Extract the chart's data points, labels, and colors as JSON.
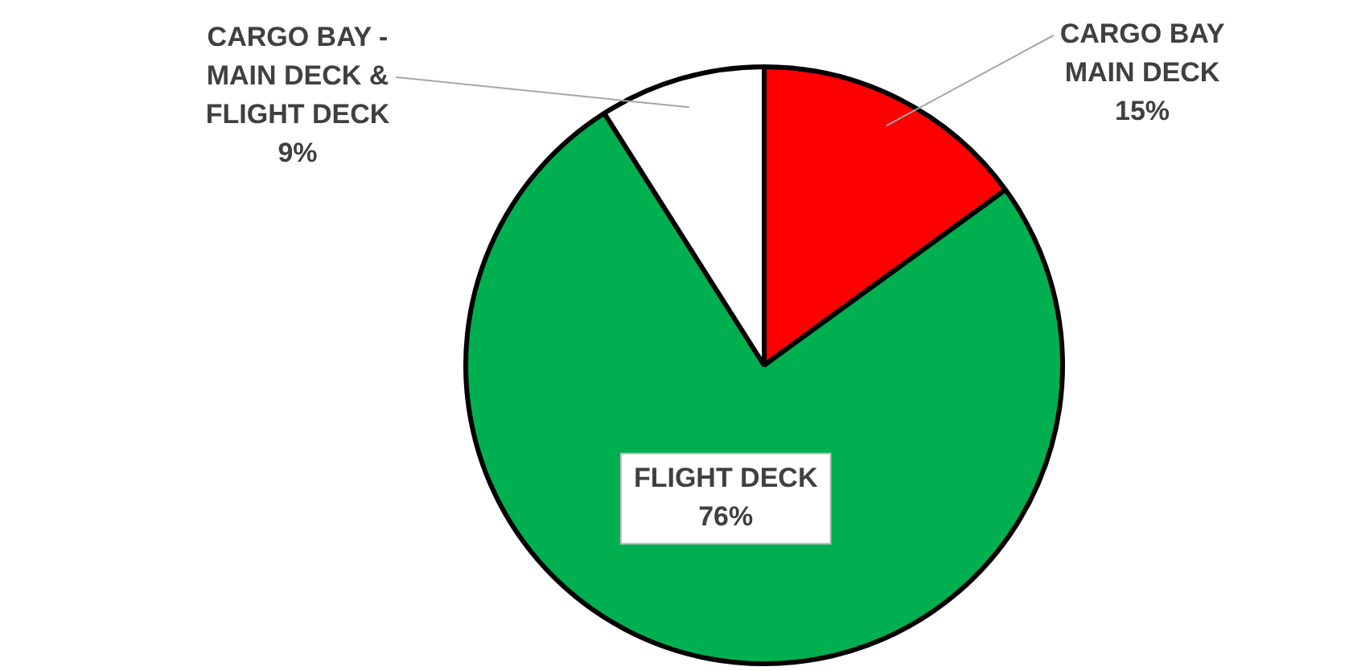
{
  "chart_data": {
    "type": "pie",
    "categories": [
      "CARGO BAY\nMAIN DECK",
      "FLIGHT DECK",
      "CARGO BAY -\nMAIN DECK &\nFLIGHT DECK"
    ],
    "values": [
      15,
      76,
      9
    ],
    "colors": [
      "#ff0000",
      "#00b050",
      "#ffffff"
    ],
    "value_labels": [
      "15%",
      "76%",
      "9%"
    ],
    "legend": false
  }
}
